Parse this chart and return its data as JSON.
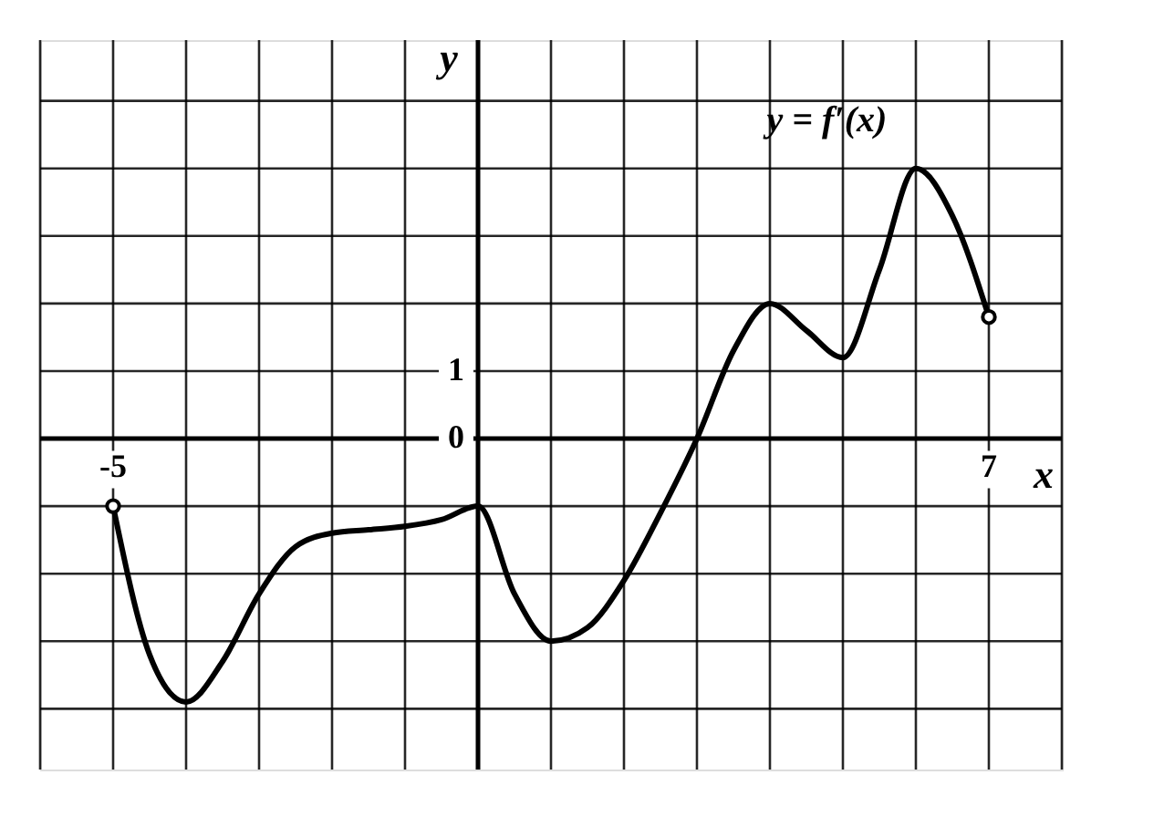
{
  "chart_data": {
    "type": "line",
    "xlabel": "x",
    "ylabel": "y",
    "xlim": [
      -6,
      8
    ],
    "ylim": [
      -4.9,
      5.9
    ],
    "xticks": [
      {
        "value": -6,
        "label": null
      },
      -5,
      {
        "value": -4,
        "label": null
      },
      {
        "value": -3,
        "label": null
      },
      {
        "value": -2,
        "label": null
      },
      {
        "value": -1,
        "label": null
      },
      {
        "value": 0,
        "label": null
      },
      {
        "value": 1,
        "label": null
      },
      {
        "value": 2,
        "label": null
      },
      {
        "value": 3,
        "label": null
      },
      {
        "value": 4,
        "label": null
      },
      {
        "value": 5,
        "label": null
      },
      {
        "value": 6,
        "label": null
      },
      7,
      {
        "value": 8,
        "label": null
      }
    ],
    "yticks": [
      {
        "value": -4,
        "label": null
      },
      {
        "value": -3,
        "label": null
      },
      {
        "value": -2,
        "label": null
      },
      {
        "value": -1,
        "label": null
      },
      0,
      1,
      {
        "value": 2,
        "label": null
      },
      {
        "value": 3,
        "label": null
      },
      {
        "value": 4,
        "label": null
      },
      {
        "value": 5,
        "label": null
      }
    ],
    "grid": true,
    "series": [
      {
        "color": "#000000",
        "marker": "none",
        "line_style": "solid",
        "x": [
          -5,
          -4.5,
          -4,
          -3.5,
          -3,
          -2.5,
          -2,
          -1.5,
          -1,
          -0.5,
          0,
          0.5,
          1,
          1.5,
          2,
          2.5,
          3,
          3.5,
          4,
          4.5,
          5,
          5.5,
          6,
          6.5,
          7
        ],
        "values": [
          -1,
          -3.2,
          -3.9,
          -3.3,
          -2.3,
          -1.6,
          -1.4,
          -1.35,
          -1.3,
          -1.2,
          -1,
          -2.3,
          -3,
          -2.8,
          -2.1,
          -1.1,
          0,
          1.3,
          2,
          1.6,
          1.2,
          2.5,
          4,
          3.3,
          1.8
        ]
      },
      {
        "type": "scatter",
        "color": "#000000",
        "marker": "circle",
        "x": [
          -5,
          7
        ],
        "values": [
          -1,
          1.8
        ]
      }
    ],
    "annotations": [
      "y = f′(x)"
    ]
  }
}
